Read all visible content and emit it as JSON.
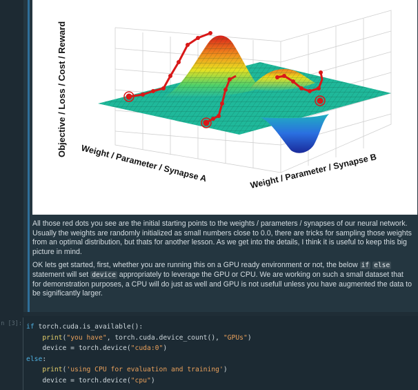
{
  "figure": {
    "z_axis_label": "Objective / Loss / Cost / Reward",
    "x_axis_label": "Weight / Parameter / Synapse A",
    "y_axis_label": "Weight / Parameter / Synapse B"
  },
  "markdown": {
    "p1": "All those red dots you see are the initial starting points to the weights / parameters / synapses of our neural network. Usually the weights are randomly initialized as small numbers close to 0.0, there are tricks for sampling those weights from an optimal distribution, but thats for another lesson. As we get into the details, I think it is useful to keep this big picture in mind.",
    "p2_a": "OK lets get started, first, whether you are running this on a GPU ready environment or not, the below ",
    "p2_code1": "if",
    "p2_sp": " ",
    "p2_code2": "else",
    "p2_b": " statement will set ",
    "p2_code3": "device",
    "p2_c": " appropriately to leverage the GPU or CPU. We are working on such a small dataset that for demonstration purposes, a CPU will do just as well and GPU is not usefull unless you have augmented the data to be significantly larger."
  },
  "code_cell": {
    "prompt": "n [3]:",
    "l1_kw": "if",
    "l1_rest": " torch.cuda.is_available():",
    "l2_fn": "print",
    "l2_p1": "(",
    "l2_s1": "\"you have\"",
    "l2_p2": ", torch.cuda.device_count(), ",
    "l2_s2": "\"GPUs\"",
    "l2_p3": ")",
    "l3_a": "device = torch.device(",
    "l3_s": "\"cuda:0\"",
    "l3_b": ")",
    "l4_kw": "else",
    "l4_rest": ":",
    "l5_fn": "print",
    "l5_p1": "(",
    "l5_s": "'using CPU for evaluation and training'",
    "l5_p2": ")",
    "l6_a": "device = torch.device(",
    "l6_s": "\"cpu\"",
    "l6_b": ")"
  }
}
